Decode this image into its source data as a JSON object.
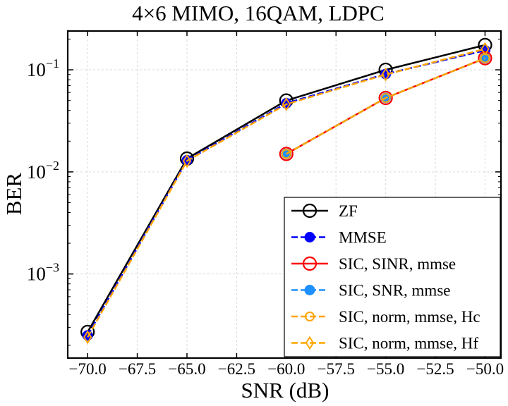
{
  "chart_data": {
    "type": "line",
    "title": "4×6 MIMO, 16QAM, LDPC",
    "xlabel": "SNR (dB)",
    "ylabel": "BER",
    "xlim": [
      -71,
      -49.2
    ],
    "ylim": [
      0.00015,
      0.24
    ],
    "yscale": "log",
    "grid": true,
    "legend_position": "lower-right",
    "x_ticks": [
      {
        "value": -70.0,
        "label": "−70.0"
      },
      {
        "value": -67.5,
        "label": "−67.5"
      },
      {
        "value": -65.0,
        "label": "−65.0"
      },
      {
        "value": -62.5,
        "label": "−62.5"
      },
      {
        "value": -60.0,
        "label": "−60.0"
      },
      {
        "value": -57.5,
        "label": "−57.5"
      },
      {
        "value": -55.0,
        "label": "−55.0"
      },
      {
        "value": -52.5,
        "label": "−52.5"
      },
      {
        "value": -50.0,
        "label": "−50.0"
      }
    ],
    "y_ticks": [
      {
        "value": 0.001,
        "base": "10",
        "exp": "−3"
      },
      {
        "value": 0.01,
        "base": "10",
        "exp": "−2"
      },
      {
        "value": 0.1,
        "base": "10",
        "exp": "−1"
      }
    ],
    "series": [
      {
        "name": "ZF",
        "color": "#000000",
        "dash": "solid",
        "marker": "circle-open",
        "x": [
          -70,
          -65,
          -60,
          -55,
          -50
        ],
        "y": [
          0.00027,
          0.0135,
          0.05,
          0.1,
          0.175
        ]
      },
      {
        "name": "MMSE",
        "color": "#0000ff",
        "dash": "dashed",
        "marker": "circle-filled",
        "x": [
          -70,
          -65,
          -60,
          -55,
          -50
        ],
        "y": [
          0.00025,
          0.013,
          0.047,
          0.091,
          0.155
        ]
      },
      {
        "name": "SIC, SINR, mmse",
        "color": "#ff0000",
        "dash": "solid",
        "marker": "circle-open",
        "x": [
          -60,
          -55,
          -50
        ],
        "y": [
          0.015,
          0.053,
          0.13
        ]
      },
      {
        "name": "SIC, SNR, mmse",
        "color": "#1e90ff",
        "dash": "dashed",
        "marker": "circle-filled",
        "x": [
          -60,
          -55,
          -50
        ],
        "y": [
          0.015,
          0.053,
          0.13
        ]
      },
      {
        "name": "SIC, norm, mmse, Hc",
        "color": "#ffa500",
        "dash": "dashed",
        "marker": "circle-open-small",
        "x": [
          -60,
          -55,
          -50
        ],
        "y": [
          0.015,
          0.053,
          0.13
        ]
      },
      {
        "name": "SIC, norm, mmse, Hf",
        "color": "#ffa500",
        "dash": "dashed",
        "marker": "diamond-open",
        "x": [
          -70,
          -65,
          -60,
          -55,
          -50
        ],
        "y": [
          0.00024,
          0.0128,
          0.046,
          0.09,
          0.16
        ]
      }
    ]
  }
}
